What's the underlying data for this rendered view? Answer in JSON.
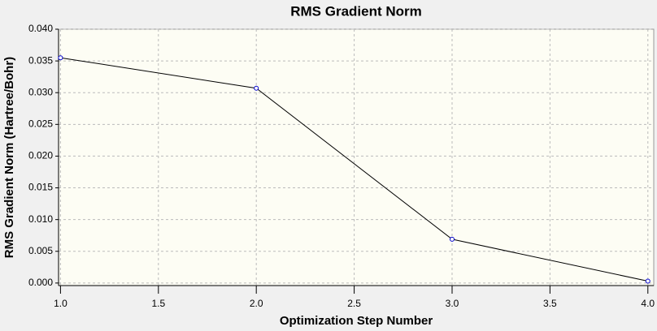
{
  "chart_data": {
    "type": "line",
    "title": "RMS Gradient Norm",
    "xlabel": "Optimization Step Number",
    "ylabel": "RMS Gradient Norm (Hartree/Bohr)",
    "x": [
      1,
      2,
      3,
      4
    ],
    "series": [
      {
        "name": "RMS Gradient Norm",
        "color": "#000000",
        "marker_color": "#0000cc",
        "values": [
          0.0355,
          0.0307,
          0.0069,
          0.0003
        ]
      }
    ],
    "xlim": [
      0.99,
      4.03
    ],
    "ylim": [
      -0.0004,
      0.04
    ],
    "xticks": [
      {
        "value": 1,
        "label": "1.0"
      },
      {
        "value": 1.5,
        "label": "1.5"
      },
      {
        "value": 2,
        "label": "2.0"
      },
      {
        "value": 2.5,
        "label": "2.5"
      },
      {
        "value": 3,
        "label": "3.0"
      },
      {
        "value": 3.5,
        "label": "3.5"
      },
      {
        "value": 4,
        "label": "4.0"
      }
    ],
    "yticks": [
      {
        "value": 0,
        "label": "0.000"
      },
      {
        "value": 0.005,
        "label": "0.005"
      },
      {
        "value": 0.01,
        "label": "0.010"
      },
      {
        "value": 0.015,
        "label": "0.015"
      },
      {
        "value": 0.02,
        "label": "0.020"
      },
      {
        "value": 0.025,
        "label": "0.025"
      },
      {
        "value": 0.03,
        "label": "0.030"
      },
      {
        "value": 0.035,
        "label": "0.035"
      },
      {
        "value": 0.04,
        "label": "0.040"
      }
    ],
    "grid": true,
    "background": "#fdfdf4"
  }
}
